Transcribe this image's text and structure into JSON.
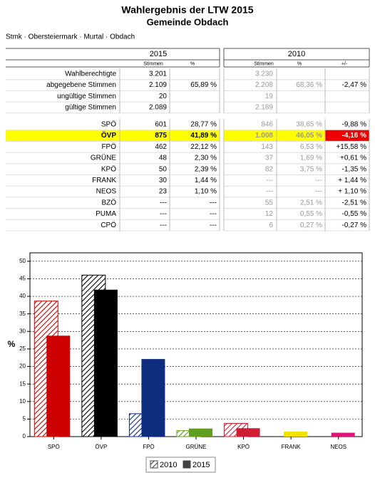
{
  "header": {
    "title": "Wahlergebnis der LTW 2015",
    "subtitle": "Gemeinde Obdach",
    "breadcrumb": "Stmk · Obersteiermark · Murtal · Obdach"
  },
  "table": {
    "groups": [
      "2015",
      "2010"
    ],
    "subheaders": [
      "Stimmen",
      "%",
      "Stimmen",
      "%",
      "+/-"
    ],
    "highlighted_party": "ÖVP",
    "summary_rows": [
      [
        "Wahlberechtigte",
        "3.201",
        null,
        "3.230",
        null,
        null
      ],
      [
        "abgegebene Stimmen",
        "2.109",
        "65,89 %",
        "2.208",
        "68,36 %",
        "-2,47 %"
      ],
      [
        "ungültige Stimmen",
        "20",
        null,
        "19",
        null,
        null
      ],
      [
        "gültige Stimmen",
        "2.089",
        null,
        "2.189",
        null,
        null
      ]
    ],
    "party_rows": [
      [
        "SPÖ",
        "601",
        "28,77 %",
        "846",
        "38,65 %",
        "-9,88 %"
      ],
      [
        "ÖVP",
        "875",
        "41,89 %",
        "1.008",
        "46,05 %",
        "-4,16 %"
      ],
      [
        "FPÖ",
        "462",
        "22,12 %",
        "143",
        "6,53 %",
        "+15,58 %"
      ],
      [
        "GRÜNE",
        "48",
        "2,30 %",
        "37",
        "1,69 %",
        "+0,61 %"
      ],
      [
        "KPÖ",
        "50",
        "2,39 %",
        "82",
        "3,75 %",
        "-1,35 %"
      ],
      [
        "FRANK",
        "30",
        "1,44 %",
        "---",
        "---",
        "+ 1,44 %"
      ],
      [
        "NEOS",
        "23",
        "1,10 %",
        "---",
        "---",
        "+ 1,10 %"
      ],
      [
        "BZÖ",
        "---",
        "---",
        "55",
        "2,51 %",
        "-2,51 %"
      ],
      [
        "PUMA",
        "---",
        "---",
        "12",
        "0,55 %",
        "-0,55 %"
      ],
      [
        "CPÖ",
        "---",
        "---",
        "6",
        "0,27 %",
        "-0,27 %"
      ]
    ]
  },
  "chart_data": {
    "type": "bar",
    "y_label": "%",
    "categories": [
      "SPÖ",
      "ÖVP",
      "FPÖ",
      "GRÜNE",
      "KPÖ",
      "FRANK",
      "NEOS"
    ],
    "colors": [
      "#cc0000",
      "#000000",
      "#0f2d7e",
      "#5f9e1e",
      "#cc1f33",
      "#f2e200",
      "#e0157b"
    ],
    "series": [
      {
        "name": "2010",
        "pattern": "hatch",
        "values": [
          38.65,
          46.05,
          6.53,
          1.69,
          3.75,
          null,
          null
        ]
      },
      {
        "name": "2015",
        "pattern": "solid",
        "values": [
          28.77,
          41.89,
          22.12,
          2.3,
          2.39,
          1.44,
          1.1
        ]
      }
    ],
    "ylim": [
      0,
      52.4
    ],
    "yticks": [
      0,
      5,
      10,
      15,
      20,
      25,
      30,
      35,
      40,
      45,
      50
    ],
    "grid": true
  }
}
